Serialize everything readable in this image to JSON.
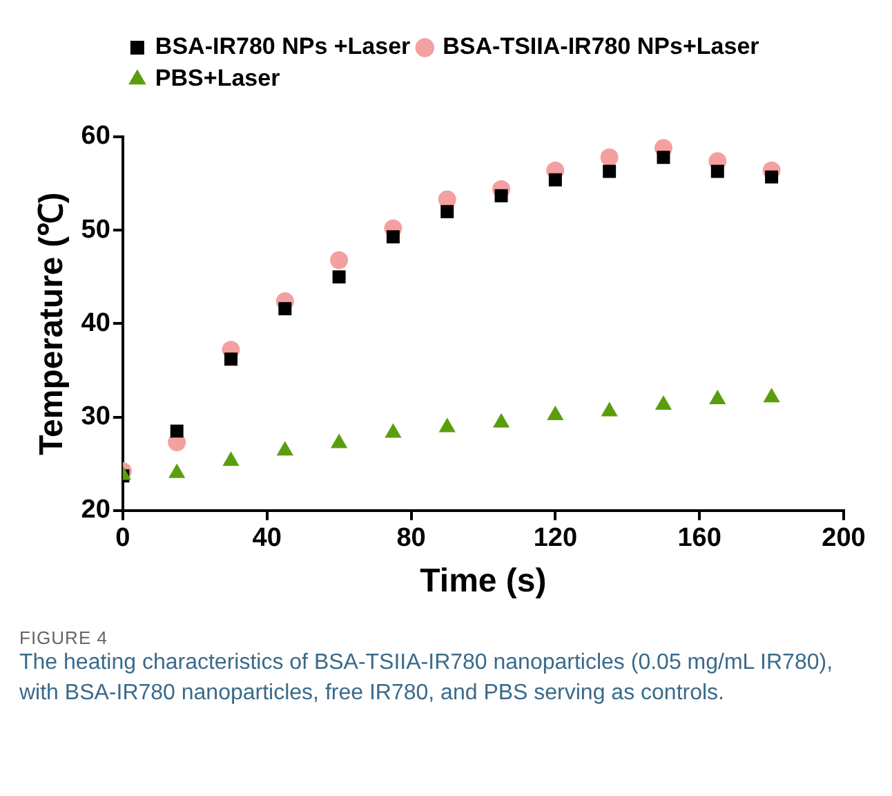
{
  "chart_data": {
    "type": "scatter",
    "xlabel": "Time (s)",
    "ylabel": "Temperature (℃)",
    "x": [
      0,
      15,
      30,
      45,
      60,
      75,
      90,
      105,
      120,
      135,
      150,
      165,
      180
    ],
    "xlim": [
      0,
      200
    ],
    "xticks": [
      0,
      40,
      80,
      120,
      160,
      200
    ],
    "ylim": [
      20,
      60
    ],
    "yticks": [
      20,
      30,
      40,
      50,
      60
    ],
    "grid": false,
    "legend": "top left",
    "series": [
      {
        "name": "BSA-IR780 NPs +Laser",
        "color": "#000000",
        "marker": "square",
        "values": [
          23.7,
          28.5,
          36.2,
          41.6,
          45.0,
          49.3,
          52.0,
          53.7,
          55.4,
          56.3,
          57.8,
          56.3,
          55.7
        ]
      },
      {
        "name": "BSA-TSIIA-IR780 NPs+Laser",
        "color": "#f4a0a0",
        "marker": "circle",
        "values": [
          24.2,
          27.3,
          37.2,
          42.4,
          46.8,
          50.2,
          53.3,
          54.4,
          56.4,
          57.8,
          58.8,
          57.4,
          56.4
        ]
      },
      {
        "name": "PBS+Laser",
        "color": "#5a9e0e",
        "marker": "triangle",
        "values": [
          23.8,
          24.0,
          25.3,
          26.4,
          27.2,
          28.3,
          28.9,
          29.4,
          30.2,
          30.6,
          31.3,
          31.9,
          32.1
        ]
      }
    ],
    "annotations": [
      "FIGURE 4",
      "The heating characteristics of BSA-TSIIA-IR780 nanoparticles (0.05 mg/mL IR780), with BSA-IR780 nanoparticles, free IR780, and PBS serving as controls."
    ]
  }
}
